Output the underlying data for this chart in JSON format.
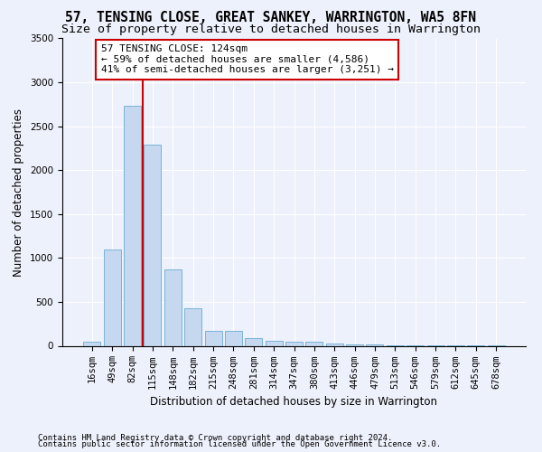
{
  "title": "57, TENSING CLOSE, GREAT SANKEY, WARRINGTON, WA5 8FN",
  "subtitle": "Size of property relative to detached houses in Warrington",
  "xlabel": "Distribution of detached houses by size in Warrington",
  "ylabel": "Number of detached properties",
  "bar_labels": [
    "16sqm",
    "49sqm",
    "82sqm",
    "115sqm",
    "148sqm",
    "182sqm",
    "215sqm",
    "248sqm",
    "281sqm",
    "314sqm",
    "347sqm",
    "380sqm",
    "413sqm",
    "446sqm",
    "479sqm",
    "513sqm",
    "546sqm",
    "579sqm",
    "612sqm",
    "645sqm",
    "678sqm"
  ],
  "bar_values": [
    50,
    1100,
    2730,
    2290,
    870,
    430,
    165,
    165,
    90,
    60,
    50,
    45,
    30,
    20,
    20,
    5,
    5,
    5,
    5,
    5,
    5
  ],
  "bar_color": "#c5d8f0",
  "bar_edge_color": "#6aabd2",
  "vline_color": "#cc0000",
  "annotation_line1": "57 TENSING CLOSE: 124sqm",
  "annotation_line2": "← 59% of detached houses are smaller (4,586)",
  "annotation_line3": "41% of semi-detached houses are larger (3,251) →",
  "annotation_box_color": "white",
  "annotation_box_edge": "#cc0000",
  "ylim": [
    0,
    3500
  ],
  "yticks": [
    0,
    500,
    1000,
    1500,
    2000,
    2500,
    3000,
    3500
  ],
  "background_color": "#edf1fb",
  "plot_bg_color": "#edf1fb",
  "footer_line1": "Contains HM Land Registry data © Crown copyright and database right 2024.",
  "footer_line2": "Contains public sector information licensed under the Open Government Licence v3.0.",
  "title_fontsize": 10.5,
  "subtitle_fontsize": 9.5,
  "axis_label_fontsize": 8.5,
  "tick_fontsize": 7.5,
  "annotation_fontsize": 8.0,
  "footer_fontsize": 6.5
}
